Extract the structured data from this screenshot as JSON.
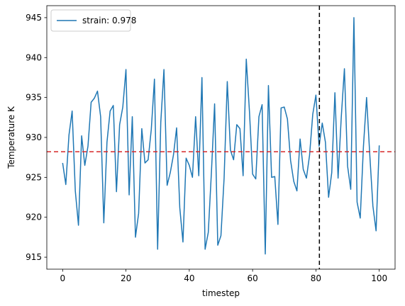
{
  "chart_data": {
    "type": "line",
    "xlabel": "timestep",
    "ylabel": "Temperature K",
    "xlim": [
      -5,
      105
    ],
    "ylim": [
      913.5,
      946.5
    ],
    "xticks": [
      0,
      20,
      40,
      60,
      80,
      100
    ],
    "yticks": [
      915,
      920,
      925,
      930,
      935,
      940,
      945
    ],
    "grid": false,
    "legend_position": "top-left",
    "series": [
      {
        "name": "strain: 0.978",
        "color": "#1f77b4",
        "x": [
          0,
          1,
          2,
          3,
          4,
          5,
          6,
          7,
          8,
          9,
          10,
          11,
          12,
          13,
          14,
          15,
          16,
          17,
          18,
          19,
          20,
          21,
          22,
          23,
          24,
          25,
          26,
          27,
          28,
          29,
          30,
          31,
          32,
          33,
          34,
          35,
          36,
          37,
          38,
          39,
          40,
          41,
          42,
          43,
          44,
          45,
          46,
          47,
          48,
          49,
          50,
          51,
          52,
          53,
          54,
          55,
          56,
          57,
          58,
          59,
          60,
          61,
          62,
          63,
          64,
          65,
          66,
          67,
          68,
          69,
          70,
          71,
          72,
          73,
          74,
          75,
          76,
          77,
          78,
          79,
          80,
          81,
          82,
          83,
          84,
          85,
          86,
          87,
          88,
          89,
          90,
          91,
          92,
          93,
          94,
          95,
          96,
          97,
          98,
          99,
          100
        ],
        "y": [
          926.8,
          924.1,
          930.3,
          933.3,
          923.3,
          919.0,
          930.2,
          926.5,
          928.9,
          934.4,
          934.9,
          935.8,
          932.6,
          919.3,
          929.4,
          933.3,
          934.0,
          923.2,
          931.6,
          933.8,
          938.5,
          922.8,
          932.6,
          917.5,
          920.5,
          931.1,
          926.8,
          927.2,
          931.0,
          937.3,
          916.0,
          931.9,
          938.5,
          924.0,
          925.6,
          927.8,
          931.2,
          921.2,
          916.9,
          927.4,
          926.5,
          925.0,
          932.6,
          925.2,
          937.5,
          916.0,
          918.1,
          925.7,
          934.2,
          916.5,
          917.7,
          924.9,
          937.0,
          928.4,
          927.2,
          931.6,
          931.1,
          925.2,
          939.8,
          933.3,
          925.4,
          924.8,
          932.6,
          934.1,
          915.4,
          936.5,
          925.0,
          925.1,
          919.1,
          933.7,
          933.8,
          932.3,
          927.1,
          924.5,
          923.3,
          929.8,
          926.0,
          924.9,
          927.8,
          932.9,
          935.3,
          928.9,
          931.8,
          929.4,
          922.5,
          925.6,
          935.6,
          924.9,
          932.5,
          938.6,
          926.4,
          923.5,
          945.0,
          921.9,
          919.9,
          928.8,
          935.0,
          927.9,
          921.4,
          918.3,
          929.0
        ]
      }
    ],
    "reference_lines": [
      {
        "orientation": "horizontal",
        "value": 928.2,
        "color": "#d62728",
        "style": "dashed"
      },
      {
        "orientation": "vertical",
        "value": 81.1,
        "color": "#000000",
        "style": "dashed"
      }
    ]
  }
}
